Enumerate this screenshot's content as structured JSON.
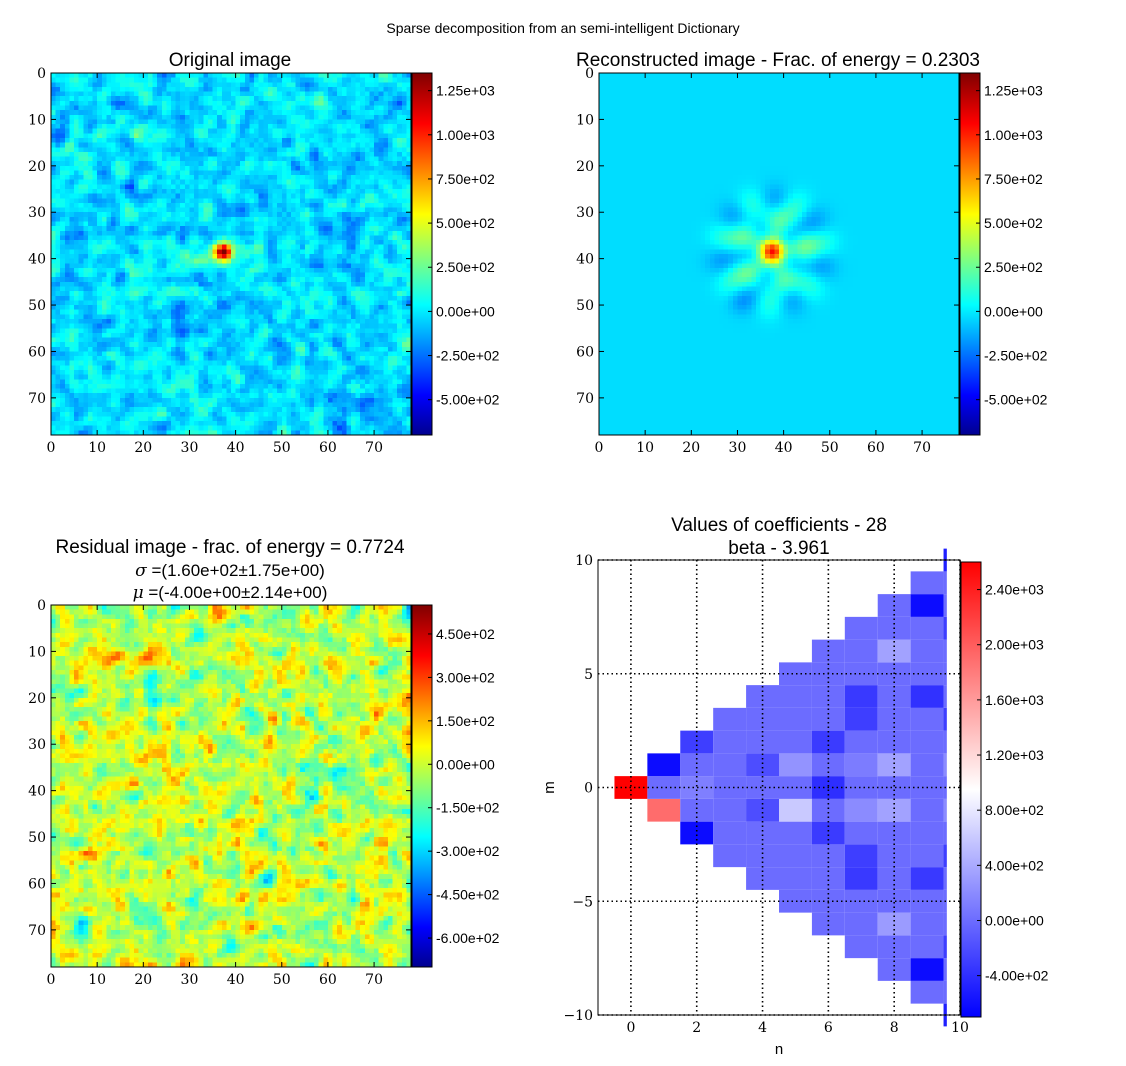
{
  "figure": {
    "suptitle": "Sparse decomposition from an semi-intelligent Dictionary"
  },
  "chart_data": [
    {
      "type": "heatmap",
      "id": "original",
      "title": "Original image",
      "xlabel": "",
      "ylabel": "",
      "xlim": [
        0,
        78
      ],
      "ylim": [
        78,
        0
      ],
      "xticks": [
        "0",
        "10",
        "20",
        "30",
        "40",
        "50",
        "60",
        "70"
      ],
      "yticks": [
        "0",
        "10",
        "20",
        "30",
        "40",
        "50",
        "60",
        "70"
      ],
      "colormap": "jet",
      "colorbar": {
        "min": -700,
        "max": 1350,
        "ticks": [
          1250,
          1000,
          750,
          500,
          250,
          0,
          -250,
          -500
        ],
        "labels": [
          "1.25e+03",
          "1.00e+03",
          "7.50e+02",
          "5.00e+02",
          "2.50e+02",
          "0.00e+00",
          "-2.50e+02",
          "-5.00e+02"
        ]
      },
      "content": "gaussian noise (sigma ~160) with a compact bright source peaking ~1300 at (37, 38)",
      "source_center": [
        37,
        38
      ]
    },
    {
      "type": "heatmap",
      "id": "reconstructed",
      "title": "Reconstructed image - Frac. of energy = 0.2303",
      "xlabel": "",
      "ylabel": "",
      "xlim": [
        0,
        78
      ],
      "ylim": [
        78,
        0
      ],
      "xticks": [
        "0",
        "10",
        "20",
        "30",
        "40",
        "50",
        "60",
        "70"
      ],
      "yticks": [
        "0",
        "10",
        "20",
        "30",
        "40",
        "50",
        "60",
        "70"
      ],
      "colormap": "jet",
      "colorbar": {
        "min": -700,
        "max": 1350,
        "ticks": [
          1250,
          1000,
          750,
          500,
          250,
          0,
          -250,
          -500
        ],
        "labels": [
          "1.25e+03",
          "1.00e+03",
          "7.50e+02",
          "5.00e+02",
          "2.50e+02",
          "0.00e+00",
          "-2.50e+02",
          "-5.00e+02"
        ]
      },
      "content": "smooth source reconstruction centered at (37, 38) with weak ring structure",
      "source_center": [
        37,
        38
      ]
    },
    {
      "type": "heatmap",
      "id": "residual",
      "title": "Residual image - frac. of energy = 0.7724",
      "subtitle_sigma_symbol": "σ",
      "subtitle_sigma": " =(1.60e+02±1.75e+00)",
      "subtitle_mu_symbol": "μ",
      "subtitle_mu": " =(-4.00e+00±2.14e+00)",
      "xlabel": "",
      "ylabel": "",
      "xlim": [
        0,
        78
      ],
      "ylim": [
        78,
        0
      ],
      "xticks": [
        "0",
        "10",
        "20",
        "30",
        "40",
        "50",
        "60",
        "70"
      ],
      "yticks": [
        "0",
        "10",
        "20",
        "30",
        "40",
        "50",
        "60",
        "70"
      ],
      "colormap": "jet",
      "colorbar": {
        "min": -700,
        "max": 550,
        "ticks": [
          450,
          300,
          150,
          0,
          -150,
          -300,
          -450,
          -600
        ],
        "labels": [
          "4.50e+02",
          "3.00e+02",
          "1.50e+02",
          "0.00e+00",
          "-1.50e+02",
          "-3.00e+02",
          "-4.50e+02",
          "-6.00e+02"
        ]
      },
      "content": "noise residual, sigma 160, mu -4"
    },
    {
      "type": "heatmap",
      "id": "coefficients",
      "title": "Values of coefficients - 28",
      "subtitle": "beta - 3.961",
      "xlabel": "n",
      "ylabel": "m",
      "xlim": [
        -1,
        10
      ],
      "ylim": [
        -10,
        10
      ],
      "xticks": [
        "0",
        "2",
        "4",
        "6",
        "8",
        "10"
      ],
      "yticks": [
        "10",
        "5",
        "0",
        "−5",
        "−10"
      ],
      "grid": "dotted",
      "colormap": "bwr",
      "colorbar": {
        "min": -700,
        "max": 2600,
        "ticks": [
          2400,
          2000,
          1600,
          1200,
          800,
          400,
          0,
          -400
        ],
        "labels": [
          "2.40e+03",
          "2.00e+03",
          "1.60e+03",
          "1.20e+03",
          "8.00e+02",
          "4.00e+02",
          "0.00e+00",
          "-4.00e+02"
        ]
      },
      "cells_note": "one cell per (n, m), m = -n..n; value for m<0 equals value for m>0 unless listed",
      "background_value": 0,
      "cells": [
        {
          "n": 0,
          "m": 0,
          "value": 2600
        },
        {
          "n": 1,
          "m": 1,
          "value": -620
        },
        {
          "n": 1,
          "m": -1,
          "value": 1900
        },
        {
          "n": 2,
          "m": 2,
          "value": -300
        },
        {
          "n": 2,
          "m": 0,
          "value": 120
        },
        {
          "n": 2,
          "m": -2,
          "value": -620
        },
        {
          "n": 4,
          "m": -1,
          "value": -200
        },
        {
          "n": 5,
          "m": 1,
          "value": 250
        },
        {
          "n": 5,
          "m": -1,
          "value": 600
        },
        {
          "n": 6,
          "m": 0,
          "value": -400
        },
        {
          "n": 6,
          "m": -2,
          "value": -320
        },
        {
          "n": 7,
          "m": 1,
          "value": 100
        },
        {
          "n": 7,
          "m": -1,
          "value": 200
        },
        {
          "n": 7,
          "m": -3,
          "value": -300
        },
        {
          "n": 7,
          "m": -4,
          "value": -330
        },
        {
          "n": 8,
          "m": 6,
          "value": 350
        },
        {
          "n": 8,
          "m": -6,
          "value": 300
        },
        {
          "n": 8,
          "m": -1,
          "value": 350
        },
        {
          "n": 9,
          "m": -4,
          "value": -330
        },
        {
          "n": 9,
          "m": 4,
          "value": -380
        },
        {
          "n": 9,
          "m": -8,
          "value": -620
        },
        {
          "n": 10,
          "m": 10,
          "value": -500
        },
        {
          "n": 10,
          "m": 7,
          "value": -300
        },
        {
          "n": 10,
          "m": -1,
          "value": 200
        },
        {
          "n": 10,
          "m": -3,
          "value": -300
        }
      ]
    }
  ]
}
